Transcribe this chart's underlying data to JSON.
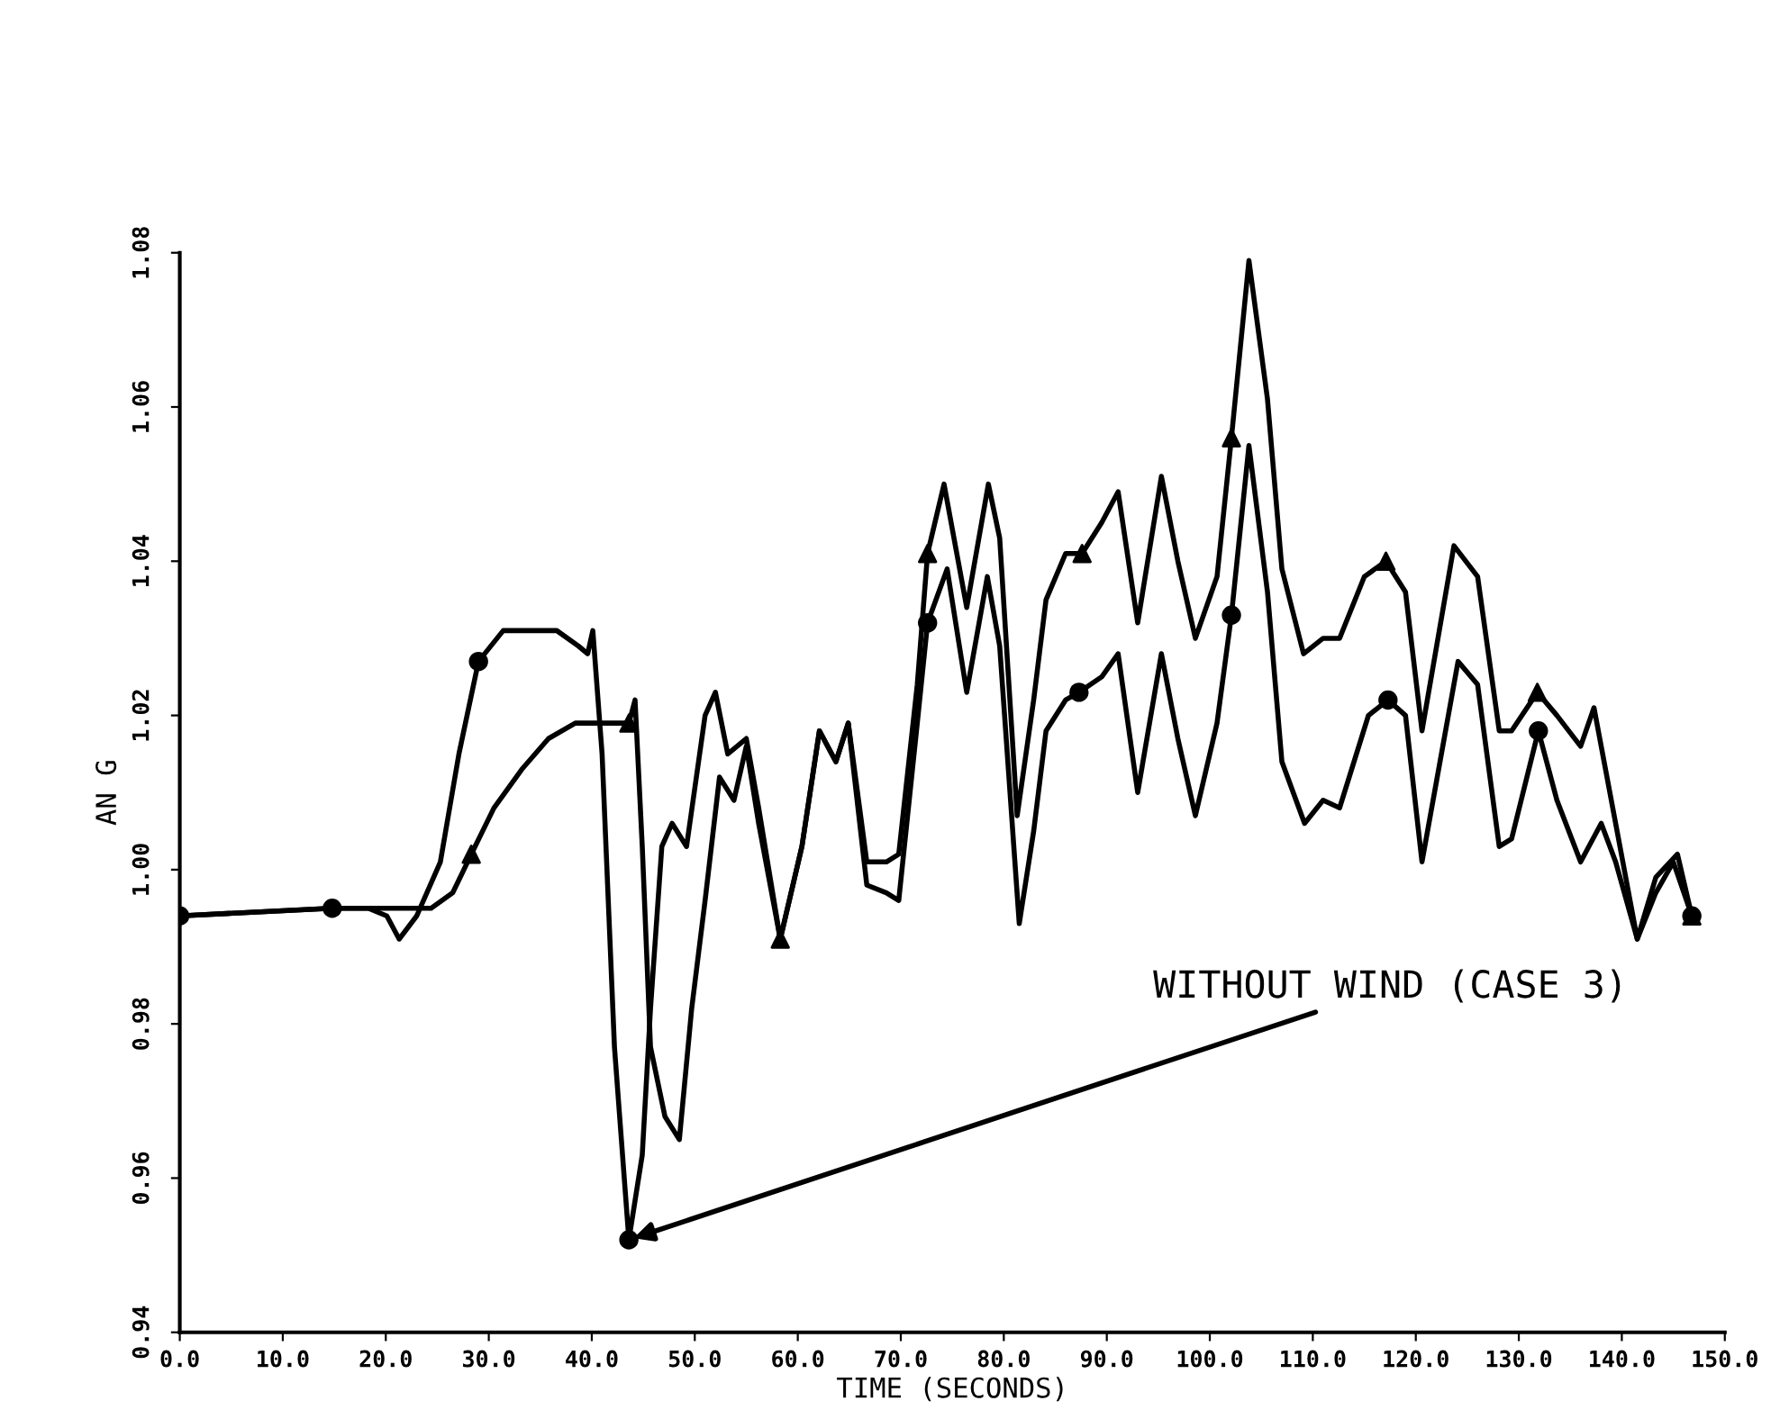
{
  "chart_data": {
    "type": "line",
    "xlabel": "TIME (SECONDS)",
    "ylabel": "AN G",
    "annotations": [
      {
        "text": "WITHOUT WIND (CASE 3)",
        "x": 43.6,
        "y": 0.952
      }
    ],
    "xlim": [
      0,
      150
    ],
    "ylim": [
      0.94,
      1.08
    ],
    "xticks": [
      {
        "value": 0,
        "label": "0.0"
      },
      {
        "value": 10,
        "label": "10.0"
      },
      {
        "value": 20,
        "label": "20.0"
      },
      {
        "value": 30,
        "label": "30.0"
      },
      {
        "value": 40,
        "label": "40.0"
      },
      {
        "value": 50,
        "label": "50.0"
      },
      {
        "value": 60,
        "label": "60.0"
      },
      {
        "value": 70,
        "label": "70.0"
      },
      {
        "value": 80,
        "label": "80.0"
      },
      {
        "value": 90,
        "label": "90.0"
      },
      {
        "value": 100,
        "label": "100.0"
      },
      {
        "value": 110,
        "label": "110.0"
      },
      {
        "value": 120,
        "label": "120.0"
      },
      {
        "value": 130,
        "label": "130.0"
      },
      {
        "value": 140,
        "label": "140.0"
      },
      {
        "value": 150,
        "label": "150.0"
      }
    ],
    "yticks": [
      {
        "value": 0.94,
        "label": "0.94"
      },
      {
        "value": 0.96,
        "label": "0.96"
      },
      {
        "value": 0.98,
        "label": "0.98"
      },
      {
        "value": 1.0,
        "label": "1.00"
      },
      {
        "value": 1.02,
        "label": "1.02"
      },
      {
        "value": 1.04,
        "label": "1.04"
      },
      {
        "value": 1.06,
        "label": "1.06"
      },
      {
        "value": 1.08,
        "label": "1.08"
      }
    ],
    "grid": false,
    "legend": false,
    "series": [
      {
        "color": "#000000",
        "marker": "none",
        "x": [
          0,
          14.8,
          18.3,
          20.1,
          21.3,
          23.0,
          25.3,
          27.1,
          29.0,
          31.4,
          34.0,
          36.6,
          38.7,
          39.6,
          40.1,
          41.0,
          42.2,
          43.6,
          44.9,
          45.7,
          46.8,
          47.8,
          49.2,
          51.0,
          52.0,
          53.2,
          55.0,
          56.2,
          58.3,
          60.4,
          62.1,
          63.7,
          64.9,
          66.7,
          68.6,
          69.8,
          71.6,
          72.6,
          74.5,
          76.4,
          78.4,
          79.6,
          81.5,
          82.9,
          84.1,
          86.0,
          87.3,
          89.5,
          91.1,
          93.0,
          95.3,
          96.9,
          98.6,
          100.7,
          102.1,
          103.8,
          105.6,
          107.0,
          109.2,
          111.0,
          112.6,
          115.4,
          117.3,
          119.0,
          120.6,
          124.1,
          126.0,
          128.1,
          129.3,
          131.9,
          133.7,
          136.0,
          138.0,
          139.4,
          141.5,
          143.3,
          145.0,
          146.8
        ],
        "values": [
          0.994,
          0.995,
          0.995,
          0.994,
          0.991,
          0.994,
          1.001,
          1.015,
          1.027,
          1.031,
          1.031,
          1.031,
          1.029,
          1.028,
          1.031,
          1.015,
          0.977,
          0.952,
          0.963,
          0.982,
          1.003,
          1.006,
          1.003,
          1.02,
          1.023,
          1.015,
          1.017,
          1.008,
          0.991,
          1.003,
          1.018,
          1.014,
          1.019,
          0.998,
          0.997,
          0.996,
          1.019,
          1.032,
          1.039,
          1.023,
          1.038,
          1.029,
          0.993,
          1.005,
          1.018,
          1.022,
          1.023,
          1.025,
          1.028,
          1.01,
          1.028,
          1.017,
          1.007,
          1.019,
          1.033,
          1.055,
          1.036,
          1.014,
          1.006,
          1.009,
          1.008,
          1.02,
          1.022,
          1.02,
          1.001,
          1.027,
          1.024,
          1.003,
          1.004,
          1.018,
          1.009,
          1.001,
          1.006,
          1.001,
          0.991,
          0.997,
          1.001,
          0.994
        ]
      },
      {
        "color": "#000000",
        "marker": "none",
        "x": [
          0,
          14.8,
          20.1,
          24.4,
          26.5,
          28.3,
          30.5,
          33.2,
          35.8,
          38.4,
          41.9,
          43.6,
          44.2,
          44.9,
          45.7,
          47.1,
          48.5,
          49.7,
          51.0,
          52.4,
          53.8,
          55.0,
          56.2,
          58.3,
          60.4,
          62.1,
          63.7,
          64.9,
          66.7,
          68.6,
          69.8,
          71.6,
          72.6,
          74.2,
          76.4,
          78.5,
          79.6,
          81.3,
          82.9,
          84.1,
          86.0,
          87.6,
          89.5,
          91.1,
          93.0,
          95.3,
          96.9,
          98.6,
          100.7,
          102.1,
          103.8,
          105.6,
          107.0,
          109.1,
          111.0,
          112.6,
          115.0,
          117.1,
          119.0,
          120.6,
          123.7,
          126.0,
          128.1,
          129.3,
          131.8,
          133.7,
          136.0,
          137.3,
          139.4,
          141.5,
          143.3,
          145.4,
          146.8
        ],
        "values": [
          0.994,
          0.995,
          0.995,
          0.995,
          0.997,
          1.002,
          1.008,
          1.013,
          1.017,
          1.019,
          1.019,
          1.019,
          1.022,
          1.003,
          0.977,
          0.968,
          0.965,
          0.982,
          0.996,
          1.012,
          1.009,
          1.016,
          1.006,
          0.991,
          1.003,
          1.018,
          1.014,
          1.019,
          1.001,
          1.001,
          1.002,
          1.024,
          1.041,
          1.05,
          1.034,
          1.05,
          1.043,
          1.007,
          1.022,
          1.035,
          1.041,
          1.041,
          1.045,
          1.049,
          1.032,
          1.051,
          1.04,
          1.03,
          1.038,
          1.056,
          1.079,
          1.061,
          1.039,
          1.028,
          1.03,
          1.03,
          1.038,
          1.04,
          1.036,
          1.018,
          1.042,
          1.038,
          1.018,
          1.018,
          1.023,
          1.02,
          1.016,
          1.021,
          1.006,
          0.991,
          0.999,
          1.002,
          0.994
        ]
      },
      {
        "type": "scatter",
        "color": "#000000",
        "marker": "circle",
        "x": [
          0,
          14.8,
          29.0,
          43.6,
          72.6,
          87.3,
          102.1,
          117.3,
          131.9,
          146.8
        ],
        "values": [
          0.994,
          0.995,
          1.027,
          0.952,
          1.032,
          1.023,
          1.033,
          1.022,
          1.018,
          0.994
        ]
      },
      {
        "type": "scatter",
        "color": "#000000",
        "marker": "triangle",
        "x": [
          28.3,
          43.6,
          58.3,
          72.6,
          87.6,
          102.1,
          117.1,
          131.8,
          146.8
        ],
        "values": [
          1.002,
          1.019,
          0.991,
          1.041,
          1.041,
          1.056,
          1.04,
          1.023,
          0.994
        ]
      }
    ]
  }
}
